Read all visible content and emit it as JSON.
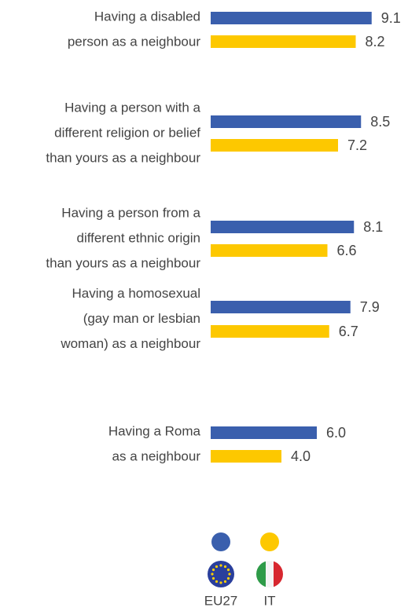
{
  "chart_data": {
    "type": "bar",
    "orientation": "horizontal",
    "categories": [
      [
        "Having a disabled",
        "person as a neighbour"
      ],
      [
        "Having a person with a",
        "different religion or belief",
        "than yours as a neighbour"
      ],
      [
        "Having a person from a",
        "different ethnic origin",
        "than yours as a neighbour"
      ],
      [
        "Having a homosexual",
        "(gay man or lesbian",
        "woman) as a neighbour"
      ],
      [
        "Having a Roma",
        "as a neighbour"
      ]
    ],
    "series": [
      {
        "name": "EU27",
        "color": "#3a5fad",
        "values": [
          9.1,
          8.5,
          8.1,
          7.9,
          6.0
        ],
        "value_labels": [
          "9.1",
          "8.5",
          "8.1",
          "7.9",
          "6.0"
        ]
      },
      {
        "name": "IT",
        "color": "#fdc800",
        "values": [
          8.2,
          7.2,
          6.6,
          6.7,
          4.0
        ],
        "value_labels": [
          "8.2",
          "7.2",
          "6.6",
          "6.7",
          "4.0"
        ]
      }
    ],
    "legend": "bottom"
  }
}
